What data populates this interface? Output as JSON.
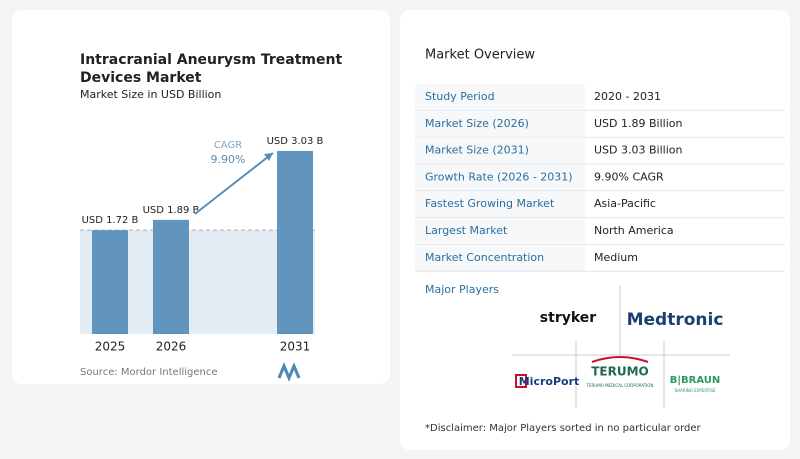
{
  "chart_data": {
    "type": "bar",
    "title": "Intracranial Aneurysm Treatment Devices Market",
    "subtitle": "Market Size in USD Billion",
    "categories": [
      "2025",
      "2026",
      "2031"
    ],
    "values": [
      1.72,
      1.89,
      3.03
    ],
    "value_labels": [
      "USD 1.72 B",
      "USD 1.89 B",
      "USD 3.03 B"
    ],
    "color": "#6195be",
    "annotations": [
      "CAGR",
      "9.90%"
    ],
    "source": "Source: Mordor Intelligence"
  },
  "overview": {
    "title": "Market Overview",
    "rows": [
      [
        "Study Period",
        "2020 - 2031"
      ],
      [
        "Market Size (2026)",
        "USD 1.89 Billion"
      ],
      [
        "Market Size (2031)",
        "USD 3.03 Billion"
      ],
      [
        "Growth Rate (2026 - 2031)",
        "9.90% CAGR"
      ],
      [
        "Fastest Growing Market",
        "Asia-Pacific"
      ],
      [
        "Largest Market",
        "North America"
      ],
      [
        "Market Concentration",
        "Medium"
      ]
    ]
  },
  "players": {
    "title": "Major Players",
    "logos": [
      "stryker",
      "Medtronic",
      "MicroPort",
      "TERUMO",
      "TERUMO MEDICAL CORPORATION",
      "B|BRAUN",
      "SHARING EXPERTISE"
    ]
  },
  "disclaimer": "*Disclaimer: Major Players sorted in no particular order"
}
